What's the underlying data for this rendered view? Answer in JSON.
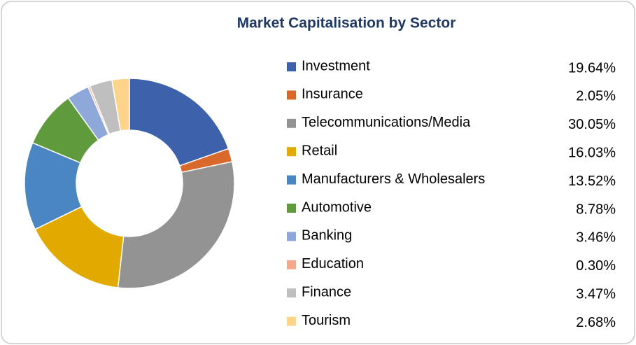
{
  "chart_data": {
    "type": "donut",
    "title": "Market Capitalisation by Sector",
    "categories": [
      "Investment",
      "Insurance",
      "Telecommunications/Media",
      "Retail",
      "Manufacturers & Wholesalers",
      "Automotive",
      "Banking",
      "Education",
      "Finance",
      "Tourism"
    ],
    "values": [
      19.64,
      2.05,
      30.05,
      16.03,
      13.52,
      8.78,
      3.46,
      0.3,
      3.47,
      2.68
    ],
    "value_labels": [
      "19.64%",
      "2.05%",
      "30.05%",
      "16.03%",
      "13.52%",
      "8.78%",
      "3.46%",
      "0.30%",
      "3.47%",
      "2.68%"
    ],
    "colors": [
      "#3d61ab",
      "#d9692a",
      "#939393",
      "#e2aa00",
      "#4a87c2",
      "#5f9b3d",
      "#8fa8da",
      "#f2a88b",
      "#bfbfbf",
      "#fdd48a"
    ],
    "legend": "right"
  }
}
